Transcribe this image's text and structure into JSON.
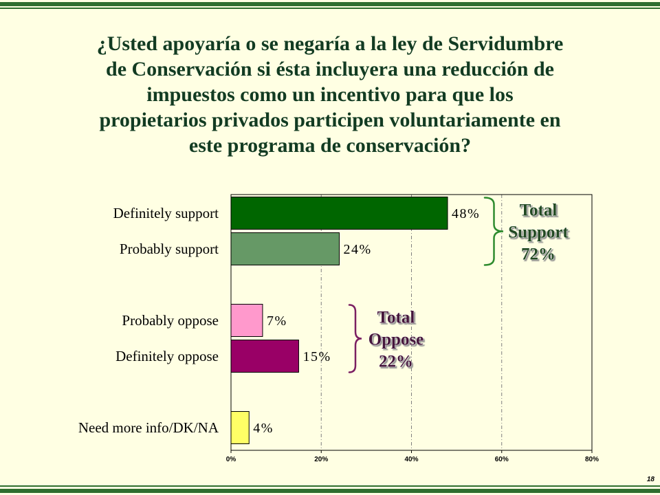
{
  "slide": {
    "page_number": "18",
    "background": "#FFFFE3",
    "rule_color": "#2F6E2F"
  },
  "chart_data": {
    "type": "bar",
    "orientation": "horizontal",
    "title": "¿Usted apoyaría o se negaría a la ley de Servidumbre\nde Conservación si ésta incluyera una reducción de\nimpuestos como un incentivo para que los\npropietarios privados participen voluntariamente en\neste programa de conservación?",
    "categories": [
      "Definitely support",
      "Probably support",
      "Probably oppose",
      "Definitely oppose",
      "Need more info/DK/NA"
    ],
    "values": [
      48,
      24,
      7,
      15,
      4
    ],
    "data_labels": [
      "48%",
      "24%",
      "7%",
      "15%",
      "4%"
    ],
    "colors": [
      "#006600",
      "#669966",
      "#FF99CC",
      "#990066",
      "#FFFF66"
    ],
    "x_ticks": [
      0,
      20,
      40,
      60,
      80
    ],
    "x_tick_labels": [
      "0%",
      "20%",
      "40%",
      "60%",
      "80%"
    ],
    "xlim": [
      0,
      80
    ],
    "grid": true,
    "annotations": [
      {
        "lines": [
          "Total",
          "Support",
          "72%"
        ],
        "groups": [
          "Definitely support",
          "Probably support"
        ],
        "bracket_color": "#2E8B2E",
        "text_color": "#244A24"
      },
      {
        "lines": [
          "Total",
          "Oppose",
          "22%"
        ],
        "groups": [
          "Probably oppose",
          "Definitely oppose"
        ],
        "bracket_color": "#7B1F62",
        "text_color": "#45163A"
      }
    ]
  }
}
